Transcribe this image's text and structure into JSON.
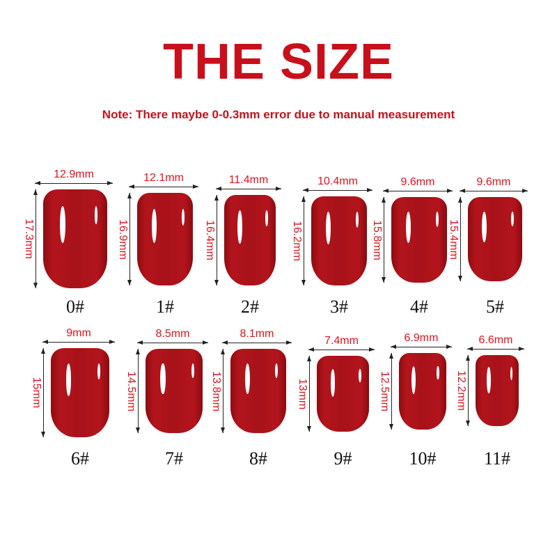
{
  "title": "THE SIZE",
  "note": "Note: There maybe 0-0.3mm error due to manual measurement",
  "colors": {
    "accent": "#c8101c",
    "nail": "#a8121a",
    "label": "#e0141e"
  },
  "sizes": [
    {
      "label": "0#",
      "width": "12.9mm",
      "length": "17.3mm"
    },
    {
      "label": "1#",
      "width": "12.1mm",
      "length": "16.9mm"
    },
    {
      "label": "2#",
      "width": "11.4mm",
      "length": "16.4mm"
    },
    {
      "label": "3#",
      "width": "10.4mm",
      "length": "16.2mm"
    },
    {
      "label": "4#",
      "width": "9.6mm",
      "length": "15.8mm"
    },
    {
      "label": "5#",
      "width": "9.6mm",
      "length": "15.4mm"
    },
    {
      "label": "6#",
      "width": "9mm",
      "length": "15mm"
    },
    {
      "label": "7#",
      "width": "8.5mm",
      "length": "14.5mm"
    },
    {
      "label": "8#",
      "width": "8.1mm",
      "length": "13.8mm"
    },
    {
      "label": "9#",
      "width": "7.4mm",
      "length": "13mm"
    },
    {
      "label": "10#",
      "width": "6.9mm",
      "length": "12.5mm"
    },
    {
      "label": "11#",
      "width": "6.6mm",
      "length": "12.2mm"
    }
  ]
}
